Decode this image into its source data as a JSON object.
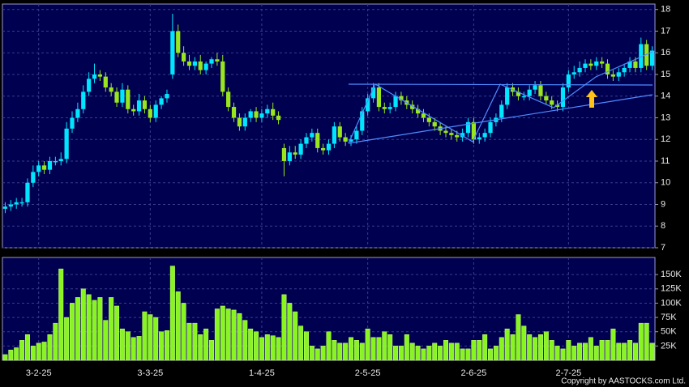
{
  "chart_data": [
    {
      "type": "candlestick",
      "categories": [
        null,
        null,
        null,
        null,
        null,
        null,
        "3-2-25",
        null,
        null,
        null,
        null,
        null,
        null,
        null,
        null,
        null,
        null,
        null,
        null,
        null,
        null,
        null,
        null,
        null,
        null,
        null,
        "3-3-25",
        null,
        null,
        null,
        null,
        null,
        null,
        null,
        null,
        null,
        null,
        null,
        null,
        null,
        null,
        null,
        null,
        null,
        null,
        null,
        "1-4-25",
        null,
        null,
        null,
        null,
        null,
        null,
        null,
        null,
        null,
        null,
        null,
        null,
        null,
        null,
        null,
        null,
        null,
        null,
        "2-5-25",
        null,
        null,
        null,
        null,
        null,
        null,
        null,
        null,
        null,
        null,
        null,
        null,
        null,
        null,
        null,
        null,
        null,
        null,
        "2-6-25",
        null,
        null,
        null,
        null,
        null,
        null,
        null,
        null,
        null,
        null,
        null,
        null,
        null,
        null,
        null,
        null,
        "2-7-25",
        null,
        null,
        null,
        null,
        null,
        null,
        null,
        null,
        null,
        null,
        null,
        null,
        null,
        null,
        null
      ],
      "open": [
        8.8,
        8.9,
        9.0,
        9.1,
        9.1,
        10.0,
        10.5,
        10.8,
        10.6,
        11.0,
        11.0,
        11.1,
        12.5,
        13.0,
        13.4,
        14.2,
        14.8,
        15.0,
        14.9,
        14.4,
        14.2,
        13.7,
        14.3,
        13.4,
        13.3,
        13.8,
        13.4,
        13.0,
        13.6,
        13.9,
        15.0,
        17.0,
        16.0,
        15.6,
        15.4,
        15.6,
        15.2,
        15.5,
        15.7,
        15.6,
        14.2,
        13.5,
        13.0,
        12.6,
        13.0,
        13.3,
        13.0,
        13.2,
        13.4,
        13.1,
        11.6,
        11.0,
        11.4,
        11.3,
        11.8,
        12.1,
        12.3,
        11.6,
        11.5,
        11.8,
        12.6,
        12.1,
        11.9,
        12.0,
        12.4,
        13.3,
        13.9,
        14.4,
        13.5,
        13.4,
        13.5,
        14.0,
        13.8,
        13.6,
        13.4,
        13.2,
        13.0,
        12.8,
        12.6,
        12.4,
        12.3,
        12.2,
        12.1,
        12.3,
        12.8,
        12.0,
        12.1,
        12.3,
        12.8,
        13.0,
        13.6,
        14.4,
        14.2,
        14.0,
        14.0,
        14.3,
        14.5,
        14.0,
        13.8,
        13.6,
        13.5,
        14.4,
        15.0,
        15.1,
        15.3,
        15.5,
        15.4,
        15.6,
        15.5,
        15.0,
        14.9,
        15.1,
        15.3,
        15.6,
        15.3,
        16.4,
        15.4
      ],
      "high": [
        9.1,
        9.2,
        9.3,
        9.3,
        10.2,
        10.8,
        11.0,
        11.0,
        11.2,
        11.2,
        11.4,
        12.8,
        13.3,
        13.7,
        14.5,
        15.1,
        15.5,
        15.2,
        15.1,
        14.6,
        14.4,
        14.6,
        14.5,
        13.6,
        14.1,
        14.0,
        13.6,
        13.8,
        14.0,
        14.3,
        17.8,
        17.3,
        16.3,
        15.9,
        15.8,
        15.9,
        15.6,
        15.8,
        16.0,
        15.9,
        14.4,
        13.7,
        13.2,
        13.2,
        13.4,
        13.5,
        13.4,
        13.6,
        13.7,
        13.3,
        11.8,
        11.7,
        11.7,
        12.0,
        12.3,
        12.5,
        12.5,
        11.8,
        12.0,
        12.8,
        12.8,
        12.3,
        12.2,
        12.6,
        13.5,
        14.1,
        14.6,
        14.6,
        13.7,
        13.7,
        14.2,
        14.2,
        14.0,
        13.8,
        13.6,
        13.4,
        13.2,
        13.0,
        12.8,
        12.6,
        12.5,
        12.4,
        12.5,
        13.0,
        13.0,
        12.3,
        12.5,
        13.0,
        13.2,
        13.8,
        14.6,
        14.6,
        14.4,
        14.2,
        14.5,
        14.7,
        14.7,
        14.2,
        14.0,
        13.8,
        14.6,
        15.2,
        15.4,
        15.6,
        15.7,
        15.7,
        15.8,
        15.8,
        15.7,
        15.2,
        15.3,
        15.5,
        15.8,
        15.8,
        16.7,
        16.6,
        16.3
      ],
      "low": [
        8.6,
        8.7,
        8.8,
        8.9,
        8.9,
        9.8,
        10.3,
        10.4,
        10.4,
        10.8,
        10.8,
        10.9,
        12.3,
        12.8,
        13.2,
        14.0,
        14.6,
        14.7,
        14.2,
        14.0,
        13.5,
        13.5,
        13.2,
        13.1,
        13.1,
        13.2,
        12.8,
        12.8,
        13.4,
        13.7,
        14.8,
        15.8,
        15.4,
        15.2,
        15.2,
        15.0,
        15.0,
        15.3,
        15.4,
        14.0,
        13.3,
        12.8,
        12.4,
        12.4,
        12.8,
        12.8,
        12.8,
        13.0,
        12.9,
        12.7,
        10.3,
        10.8,
        11.1,
        11.1,
        11.6,
        11.9,
        11.4,
        11.3,
        11.3,
        11.6,
        11.9,
        11.7,
        11.7,
        11.8,
        12.2,
        13.1,
        13.7,
        13.3,
        13.2,
        13.2,
        13.3,
        13.6,
        13.4,
        13.2,
        13.0,
        12.8,
        12.6,
        12.4,
        12.2,
        12.1,
        12.0,
        11.9,
        11.9,
        12.1,
        11.8,
        11.8,
        11.9,
        12.1,
        12.6,
        12.8,
        13.4,
        14.0,
        13.8,
        13.8,
        13.8,
        14.1,
        13.8,
        13.6,
        13.4,
        13.3,
        13.3,
        14.2,
        14.8,
        14.9,
        15.1,
        15.2,
        15.2,
        15.3,
        14.8,
        14.7,
        14.7,
        14.9,
        15.1,
        15.1,
        15.1,
        15.2,
        15.2
      ],
      "close": [
        8.9,
        9.0,
        9.1,
        9.1,
        10.0,
        10.5,
        10.8,
        10.6,
        11.0,
        11.0,
        11.1,
        12.5,
        13.0,
        13.4,
        14.2,
        14.8,
        15.0,
        14.9,
        14.4,
        14.2,
        13.7,
        14.3,
        13.4,
        13.3,
        13.8,
        13.4,
        13.0,
        13.6,
        13.9,
        14.1,
        17.0,
        16.0,
        15.6,
        15.4,
        15.6,
        15.2,
        15.5,
        15.7,
        15.6,
        14.2,
        13.5,
        13.0,
        12.6,
        13.0,
        13.3,
        13.0,
        13.2,
        13.4,
        13.1,
        12.9,
        11.0,
        11.4,
        11.3,
        11.8,
        12.1,
        12.3,
        11.6,
        11.5,
        11.8,
        12.6,
        12.1,
        11.9,
        12.0,
        12.4,
        13.3,
        13.9,
        14.4,
        13.5,
        13.4,
        13.5,
        14.0,
        13.8,
        13.6,
        13.4,
        13.2,
        13.0,
        12.8,
        12.6,
        12.4,
        12.3,
        12.2,
        12.1,
        12.3,
        12.8,
        12.0,
        12.1,
        12.3,
        12.8,
        13.0,
        13.6,
        14.4,
        14.2,
        14.0,
        14.0,
        14.3,
        14.5,
        14.0,
        13.8,
        13.6,
        13.5,
        14.4,
        15.0,
        15.1,
        15.3,
        15.5,
        15.4,
        15.6,
        15.5,
        15.0,
        14.9,
        15.1,
        15.3,
        15.6,
        15.3,
        16.4,
        15.4,
        16.1
      ],
      "up_color": "#00e6ff",
      "down_color": "#99e61e",
      "ylim": [
        7,
        18.25
      ],
      "yticks": [
        7,
        8,
        9,
        10,
        11,
        12,
        13,
        14,
        15,
        16,
        17,
        18
      ],
      "grid": true
    },
    {
      "type": "bar",
      "values": [
        10,
        18,
        22,
        35,
        45,
        25,
        30,
        32,
        45,
        65,
        160,
        75,
        100,
        110,
        125,
        115,
        105,
        110,
        70,
        110,
        95,
        55,
        50,
        40,
        42,
        85,
        80,
        75,
        50,
        52,
        165,
        120,
        100,
        65,
        65,
        45,
        55,
        35,
        90,
        95,
        90,
        88,
        82,
        70,
        55,
        50,
        40,
        45,
        43,
        40,
        115,
        100,
        85,
        60,
        50,
        25,
        20,
        25,
        50,
        35,
        30,
        30,
        40,
        35,
        30,
        55,
        40,
        40,
        50,
        45,
        25,
        25,
        45,
        30,
        25,
        20,
        25,
        30,
        25,
        35,
        30,
        30,
        20,
        20,
        35,
        35,
        45,
        20,
        25,
        40,
        55,
        45,
        80,
        60,
        45,
        40,
        45,
        50,
        35,
        25,
        20,
        35,
        25,
        30,
        30,
        40,
        25,
        35,
        35,
        55,
        30,
        30,
        35,
        30,
        65,
        65,
        30
      ],
      "color": "#88f520",
      "ylim": [
        0,
        180
      ],
      "yticks": [
        {
          "value": 25,
          "label": "25K"
        },
        {
          "value": 50,
          "label": "50K"
        },
        {
          "value": 75,
          "label": "75K"
        },
        {
          "value": 100,
          "label": "100K"
        },
        {
          "value": 125,
          "label": "125K"
        },
        {
          "value": 150,
          "label": "150K"
        }
      ],
      "grid": true
    }
  ],
  "copyright": "Copyright by AASTOCKS.com Ltd."
}
